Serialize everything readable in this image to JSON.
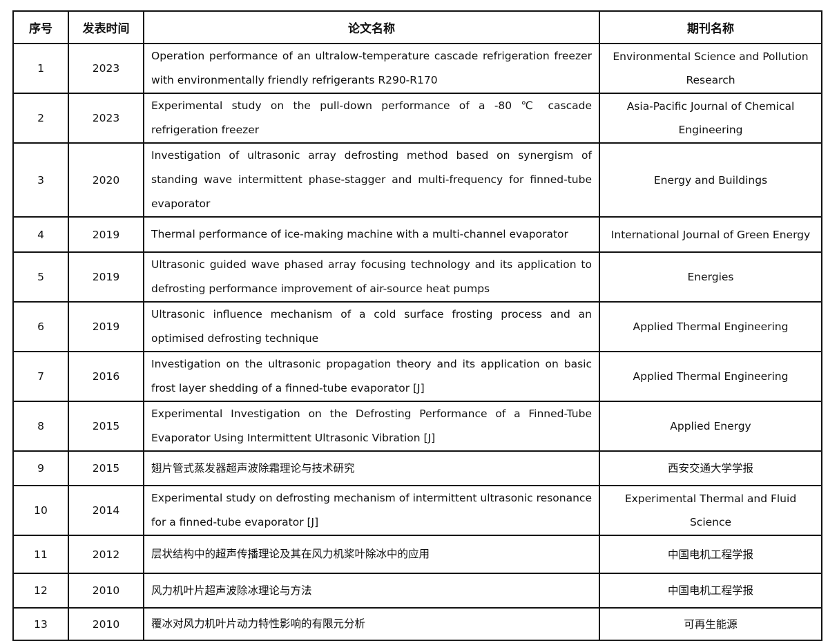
{
  "headers": [
    "序号",
    "发表时间",
    "论文名称",
    "期刊名称"
  ],
  "rows": [
    {
      "no": "1",
      "year": "2023",
      "title": "Operation performance of an ultralow-temperature cascade refrigeration freezer with environmentally friendly refrigerants R290-R170",
      "journal": "Environmental Science and Pollution Research"
    },
    {
      "no": "2",
      "year": "2023",
      "title": "Experimental study on the pull-down performance of a -80 ℃ cascade refrigeration freezer",
      "journal": "Asia-Pacific Journal of Chemical Engineering"
    },
    {
      "no": "3",
      "year": "2020",
      "title": "Investigation of ultrasonic array defrosting method based on synergism of standing wave intermittent phase-stagger and multi-frequency for finned-tube evaporator",
      "journal": "Energy and Buildings"
    },
    {
      "no": "4",
      "year": "2019",
      "title": "Thermal performance of ice-making machine with a multi-channel evaporator",
      "journal": "International Journal of Green Energy"
    },
    {
      "no": "5",
      "year": "2019",
      "title": "Ultrasonic guided wave phased array focusing technology and its application to defrosting performance improvement of air-source heat pumps",
      "journal": "Energies"
    },
    {
      "no": "6",
      "year": "2019",
      "title": "Ultrasonic influence mechanism of a cold surface frosting process and an optimised defrosting technique",
      "journal": "Applied Thermal Engineering"
    },
    {
      "no": "7",
      "year": "2016",
      "title": "Investigation on the ultrasonic propagation theory and its application on basic frost layer shedding of a finned-tube evaporator [J]",
      "journal": "Applied Thermal Engineering"
    },
    {
      "no": "8",
      "year": "2015",
      "title": "Experimental Investigation on the Defrosting Performance of a Finned-Tube Evaporator Using Intermittent Ultrasonic Vibration [J]",
      "journal": "Applied Energy"
    },
    {
      "no": "9",
      "year": "2015",
      "title": "翅片管式蒸发器超声波除霜理论与技术研究",
      "journal": "西安交通大学学报"
    },
    {
      "no": "10",
      "year": "2014",
      "title": "Experimental study on defrosting mechanism of intermittent ultrasonic resonance for a finned-tube evaporator [J]",
      "journal": "Experimental Thermal and Fluid Science"
    },
    {
      "no": "11",
      "year": "2012",
      "title": "层状结构中的超声传播理论及其在风力机桨叶除冰中的应用",
      "journal": "中国电机工程学报"
    },
    {
      "no": "12",
      "year": "2010",
      "title": "风力机叶片超声波除冰理论与方法",
      "journal": "中国电机工程学报"
    },
    {
      "no": "13",
      "year": "2010",
      "title": "覆冰对风力机叶片动力特性影响的有限元分析",
      "journal": "可再生能源"
    }
  ]
}
